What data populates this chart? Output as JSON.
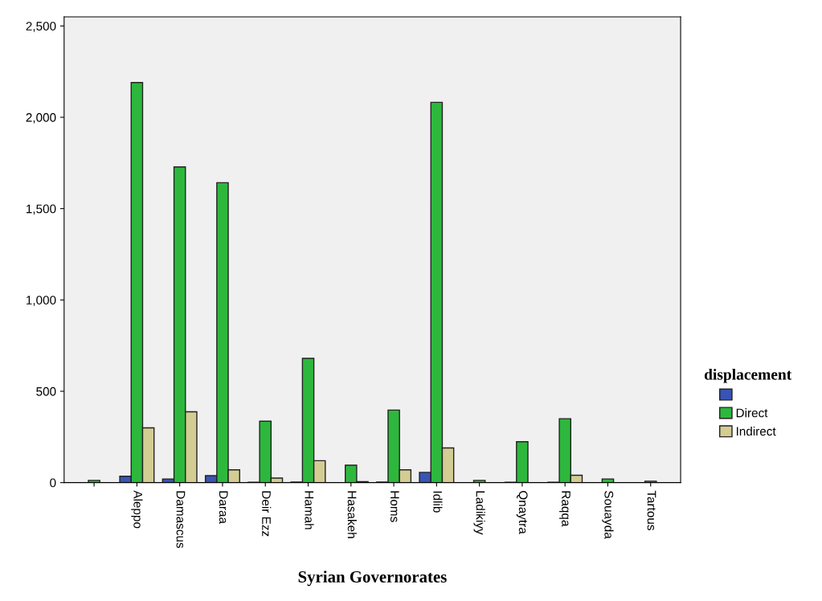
{
  "chart_data": {
    "type": "bar",
    "xlabel": "Syrian Governorates",
    "legend_title": "displacement",
    "legend": "right",
    "categories": [
      null,
      "Aleppo",
      "Damascus",
      "Daraa",
      "Deir Ezz",
      "Hamah",
      "Hasakeh",
      "Homs",
      "Idlib",
      "Ladikiyy",
      "Qnaytra",
      "Raqqa",
      "Souayda",
      "Tartous"
    ],
    "series": [
      {
        "color": "#3a54b4",
        "values": [
          null,
          35,
          20,
          38,
          2,
          3,
          null,
          3,
          56,
          null,
          2,
          2,
          null,
          null
        ]
      },
      {
        "name": "Direct",
        "color": "#2db83d",
        "values": [
          12,
          2190,
          1728,
          1642,
          336,
          680,
          95,
          397,
          2082,
          12,
          224,
          350,
          20,
          8
        ]
      },
      {
        "name": "Indirect",
        "color": "#d3cd93",
        "values": [
          null,
          300,
          388,
          70,
          25,
          120,
          5,
          70,
          190,
          null,
          null,
          40,
          null,
          null
        ]
      }
    ],
    "ylim": [
      0,
      2550
    ],
    "yticks": [
      0,
      500,
      {
        "value": 1000,
        "label": "1,000"
      },
      {
        "value": 1500,
        "label": "1,500"
      },
      {
        "value": 2000,
        "label": "2,000"
      },
      {
        "value": 2500,
        "label": "2,500"
      }
    ],
    "grid": false
  }
}
